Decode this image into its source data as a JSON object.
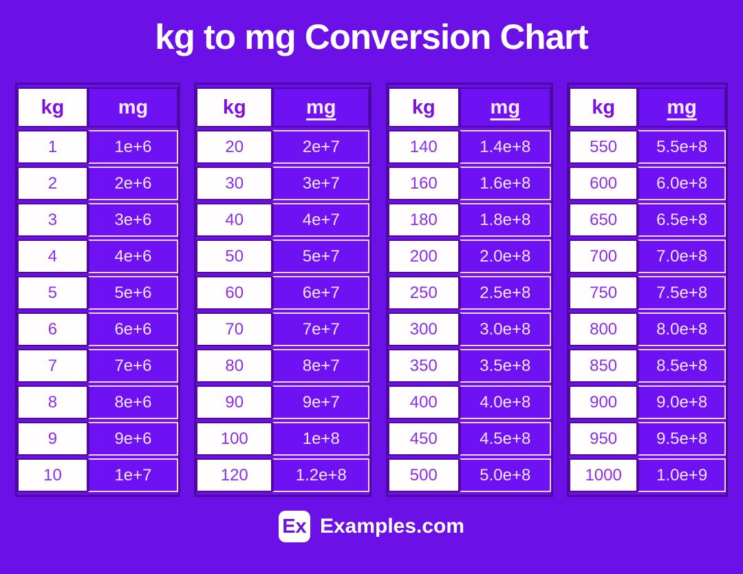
{
  "title": "kg to mg Conversion Chart",
  "colors": {
    "background": "#6b10e6",
    "cell_purple": "#6e12f4",
    "dark_border": "#4c09a4",
    "pink_border": "#f0d4f4",
    "white_cell": "#fffdfd",
    "kg_text": "#8b2fe6",
    "mg_text": "#f6e4fb"
  },
  "chart_data": {
    "type": "table",
    "title": "kg to mg Conversion Chart",
    "columns": [
      "kg",
      "mg"
    ],
    "tables": [
      {
        "kg_header": "kg",
        "mg_header": "mg",
        "mg_underlined": false,
        "rows": [
          {
            "kg": "1",
            "mg": "1e+6"
          },
          {
            "kg": "2",
            "mg": "2e+6"
          },
          {
            "kg": "3",
            "mg": "3e+6"
          },
          {
            "kg": "4",
            "mg": "4e+6"
          },
          {
            "kg": "5",
            "mg": "5e+6"
          },
          {
            "kg": "6",
            "mg": "6e+6"
          },
          {
            "kg": "7",
            "mg": "7e+6"
          },
          {
            "kg": "8",
            "mg": "8e+6"
          },
          {
            "kg": "9",
            "mg": "9e+6"
          },
          {
            "kg": "10",
            "mg": "1e+7"
          }
        ]
      },
      {
        "kg_header": "kg",
        "mg_header": "mg",
        "mg_underlined": true,
        "rows": [
          {
            "kg": "20",
            "mg": "2e+7"
          },
          {
            "kg": "30",
            "mg": "3e+7"
          },
          {
            "kg": "40",
            "mg": "4e+7"
          },
          {
            "kg": "50",
            "mg": "5e+7"
          },
          {
            "kg": "60",
            "mg": "6e+7"
          },
          {
            "kg": "70",
            "mg": "7e+7"
          },
          {
            "kg": "80",
            "mg": "8e+7"
          },
          {
            "kg": "90",
            "mg": "9e+7"
          },
          {
            "kg": "100",
            "mg": "1e+8"
          },
          {
            "kg": "120",
            "mg": "1.2e+8"
          }
        ]
      },
      {
        "kg_header": "kg",
        "mg_header": "mg",
        "mg_underlined": true,
        "rows": [
          {
            "kg": "140",
            "mg": "1.4e+8"
          },
          {
            "kg": "160",
            "mg": "1.6e+8"
          },
          {
            "kg": "180",
            "mg": "1.8e+8"
          },
          {
            "kg": "200",
            "mg": "2.0e+8"
          },
          {
            "kg": "250",
            "mg": "2.5e+8"
          },
          {
            "kg": "300",
            "mg": "3.0e+8"
          },
          {
            "kg": "350",
            "mg": "3.5e+8"
          },
          {
            "kg": "400",
            "mg": "4.0e+8"
          },
          {
            "kg": "450",
            "mg": "4.5e+8"
          },
          {
            "kg": "500",
            "mg": "5.0e+8"
          }
        ]
      },
      {
        "kg_header": "kg",
        "mg_header": "mg",
        "mg_underlined": true,
        "rows": [
          {
            "kg": "550",
            "mg": "5.5e+8"
          },
          {
            "kg": "600",
            "mg": "6.0e+8"
          },
          {
            "kg": "650",
            "mg": "6.5e+8"
          },
          {
            "kg": "700",
            "mg": "7.0e+8"
          },
          {
            "kg": "750",
            "mg": "7.5e+8"
          },
          {
            "kg": "800",
            "mg": "8.0e+8"
          },
          {
            "kg": "850",
            "mg": "8.5e+8"
          },
          {
            "kg": "900",
            "mg": "9.0e+8"
          },
          {
            "kg": "950",
            "mg": "9.5e+8"
          },
          {
            "kg": "1000",
            "mg": "1.0e+9"
          }
        ]
      }
    ]
  },
  "footer": {
    "logo_text": "Ex",
    "site_name": "Examples.com"
  }
}
